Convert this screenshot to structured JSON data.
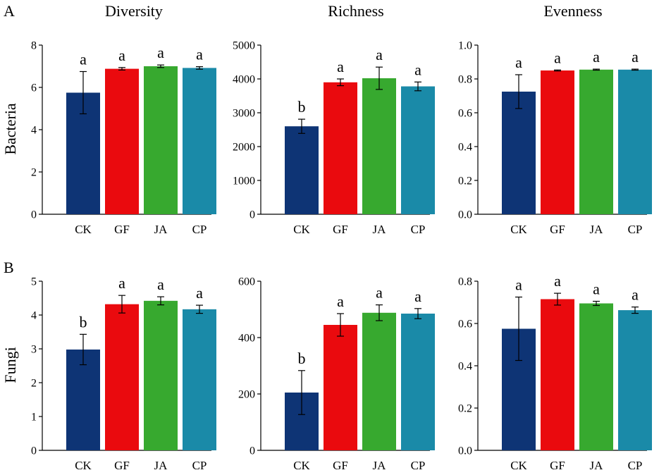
{
  "figure": {
    "panel_labels": [
      "A",
      "B"
    ],
    "column_titles": [
      "Diversity",
      "Richness",
      "Evenness"
    ],
    "row_labels": [
      "Bacteria",
      "Fungi"
    ]
  },
  "colors": {
    "CK": "#0e3475",
    "GF": "#ea0a0e",
    "JA": "#37a92f",
    "CP": "#1a8aa8"
  },
  "chart_data": [
    {
      "type": "bar",
      "row": "Bacteria",
      "metric": "Diversity",
      "categories": [
        "CK",
        "GF",
        "JA",
        "CP"
      ],
      "values": [
        5.75,
        6.88,
        7.0,
        6.92
      ],
      "errors": [
        1.0,
        0.06,
        0.06,
        0.06
      ],
      "letters": [
        "a",
        "a",
        "a",
        "a"
      ],
      "ylim": [
        0,
        8
      ],
      "yticks": [
        0,
        2,
        4,
        6,
        8
      ],
      "ytick_labels": [
        "0",
        "2",
        "4",
        "6",
        "8"
      ]
    },
    {
      "type": "bar",
      "row": "Bacteria",
      "metric": "Richness",
      "categories": [
        "CK",
        "GF",
        "JA",
        "CP"
      ],
      "values": [
        2600,
        3900,
        4020,
        3780
      ],
      "errors": [
        210,
        100,
        330,
        130
      ],
      "letters": [
        "b",
        "a",
        "a",
        "a"
      ],
      "ylim": [
        0,
        5000
      ],
      "yticks": [
        0,
        1000,
        2000,
        3000,
        4000,
        5000
      ],
      "ytick_labels": [
        "0",
        "1000",
        "2000",
        "3000",
        "4000",
        "5000"
      ]
    },
    {
      "type": "bar",
      "row": "Bacteria",
      "metric": "Evenness",
      "categories": [
        "CK",
        "GF",
        "JA",
        "CP"
      ],
      "values": [
        0.725,
        0.85,
        0.855,
        0.855
      ],
      "errors": [
        0.1,
        0.003,
        0.003,
        0.003
      ],
      "letters": [
        "a",
        "a",
        "a",
        "a"
      ],
      "ylim": [
        0,
        1.0
      ],
      "yticks": [
        0,
        0.2,
        0.4,
        0.6,
        0.8,
        1.0
      ],
      "ytick_labels": [
        "0.0",
        "0.2",
        "0.4",
        "0.6",
        "0.8",
        "1.0"
      ]
    },
    {
      "type": "bar",
      "row": "Fungi",
      "metric": "Diversity",
      "categories": [
        "CK",
        "GF",
        "JA",
        "CP"
      ],
      "values": [
        2.98,
        4.32,
        4.42,
        4.17
      ],
      "errors": [
        0.45,
        0.26,
        0.12,
        0.12
      ],
      "letters": [
        "b",
        "a",
        "a",
        "a"
      ],
      "ylim": [
        0,
        5
      ],
      "yticks": [
        0,
        1,
        2,
        3,
        4,
        5
      ],
      "ytick_labels": [
        "0",
        "1",
        "2",
        "3",
        "4",
        "5"
      ]
    },
    {
      "type": "bar",
      "row": "Fungi",
      "metric": "Richness",
      "categories": [
        "CK",
        "GF",
        "JA",
        "CP"
      ],
      "values": [
        205,
        445,
        488,
        485
      ],
      "errors": [
        78,
        40,
        28,
        18
      ],
      "letters": [
        "b",
        "a",
        "a",
        "a"
      ],
      "ylim": [
        0,
        600
      ],
      "yticks": [
        0,
        200,
        400,
        600
      ],
      "ytick_labels": [
        "0",
        "200",
        "400",
        "600"
      ]
    },
    {
      "type": "bar",
      "row": "Fungi",
      "metric": "Evenness",
      "categories": [
        "CK",
        "GF",
        "JA",
        "CP"
      ],
      "values": [
        0.575,
        0.715,
        0.695,
        0.663
      ],
      "errors": [
        0.15,
        0.028,
        0.01,
        0.015
      ],
      "letters": [
        "a",
        "a",
        "a",
        "a"
      ],
      "ylim": [
        0,
        0.8
      ],
      "yticks": [
        0,
        0.2,
        0.4,
        0.6,
        0.8
      ],
      "ytick_labels": [
        "0.0",
        "0.2",
        "0.4",
        "0.6",
        "0.8"
      ]
    }
  ]
}
